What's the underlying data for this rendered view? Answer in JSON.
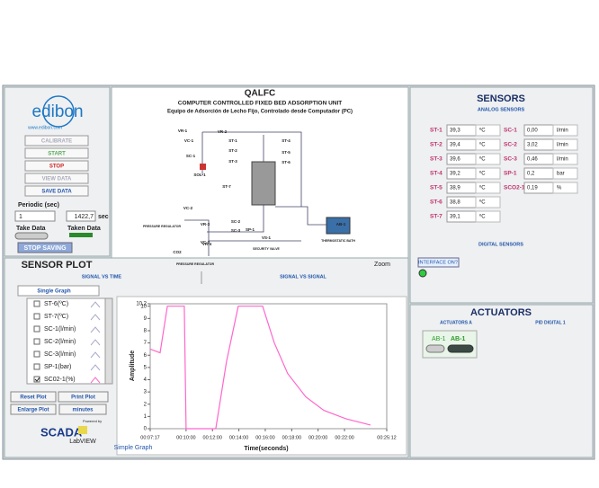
{
  "left_panel": {
    "logo": "edibon",
    "website": "www.edibon.com",
    "buttons": [
      "CALIBRATE",
      "START",
      "STOP",
      "VIEW DATA",
      "SAVE DATA"
    ],
    "periodic_label": "Periodic (sec)",
    "periodic_value": "1",
    "elapsed": "1422,7",
    "elapsed_unit": "sec",
    "take_data": "Take Data",
    "taken_data": "Taken Data",
    "stop_saving": "STOP SAVING"
  },
  "sensor_plot": {
    "title": "SENSOR PLOT",
    "tabs": [
      "SIGNAL VS TIME",
      "SIGNAL VS SIGNAL"
    ],
    "mode": "Single Graph",
    "channels": [
      "ST-6(ºC)",
      "ST-7(ºC)",
      "SC-1(l/min)",
      "SC-2(l/min)",
      "SC-3(l/min)",
      "SP-1(bar)"
    ],
    "buttons": [
      "Reset Plot",
      "Print Plot",
      "Enlarge Plot"
    ],
    "time_unit": "minutes",
    "footer": "Simple Graph",
    "scada_logo": "SCADA",
    "powered_by": "Powered by",
    "labview": "LabVIEW"
  },
  "chart_data": {
    "type": "line",
    "xlabel": "Time(seconds)",
    "ylabel": "Amplitude",
    "x": [
      437,
      482,
      515,
      572,
      592,
      600,
      735,
      784,
      837,
      948,
      1001,
      1062,
      1144,
      1226,
      1328,
      1438
    ],
    "series": [
      {
        "name": "SC02-1(%)",
        "color": "#ff66cc",
        "values": [
          6.5,
          6.2,
          10,
          10,
          10,
          0,
          0,
          5.5,
          10,
          10,
          7,
          4.5,
          2.6,
          1.5,
          0.8,
          0.3
        ]
      }
    ],
    "xlim": [
      437,
      1512
    ],
    "xticks": [
      {
        "value": 437,
        "label": "00:07:17"
      },
      {
        "value": 600,
        "label": "00:10:00"
      },
      {
        "value": 720,
        "label": "00:12:00"
      },
      {
        "value": 840,
        "label": "00:14:00"
      },
      {
        "value": 960,
        "label": "00:16:00"
      },
      {
        "value": 1080,
        "label": "00:18:00"
      },
      {
        "value": 1200,
        "label": "00:20:00"
      },
      {
        "value": 1320,
        "label": "00:22:00"
      },
      {
        "value": 1512,
        "label": "00:25:12"
      }
    ],
    "ylim": [
      0,
      10.2
    ],
    "yticks": [
      0,
      1,
      2,
      3,
      4,
      5,
      6,
      7,
      8,
      9,
      10,
      {
        "value": 10.2,
        "label": "10,2"
      }
    ]
  },
  "diagram": {
    "code": "QALFC",
    "title": "COMPUTER CONTROLLED FIXED BED ADSORPTION UNIT",
    "subtitle": "Equipo de Adsorción de Lecho Fijo, Controlado desde Computador (PC)",
    "labels": [
      "VR-1",
      "VR-2",
      "VC-1",
      "SC-1",
      "SOL-1",
      "ST-1",
      "ST-2",
      "ST-3",
      "ST-4",
      "ST-5",
      "ST-6",
      "ST-7",
      "VS-1",
      "VC-2",
      "VR-3",
      "VR-4",
      "VC-3",
      "SC-2",
      "SC-3",
      "SP-1",
      "CO2",
      "AB-1",
      "PRESSURE REGULATOR",
      "SECURITY VALVE",
      "THERMOSTATIC BATH",
      "PRESSURE REGULATOR"
    ],
    "zoom": "Zoom"
  },
  "sensors": {
    "title": "SENSORS",
    "analog_title": "ANALOG SENSORS",
    "left": [
      {
        "name": "ST-1",
        "value": "39,3",
        "unit": "ºC"
      },
      {
        "name": "ST-2",
        "value": "39,4",
        "unit": "ºC"
      },
      {
        "name": "ST-3",
        "value": "39,6",
        "unit": "ºC"
      },
      {
        "name": "ST-4",
        "value": "39,2",
        "unit": "ºC"
      },
      {
        "name": "ST-5",
        "value": "38,9",
        "unit": "ºC"
      },
      {
        "name": "ST-6",
        "value": "38,8",
        "unit": "ºC"
      },
      {
        "name": "ST-7",
        "value": "39,1",
        "unit": "ºC"
      }
    ],
    "right": [
      {
        "name": "SC-1",
        "value": "0,00",
        "unit": "l/min"
      },
      {
        "name": "SC-2",
        "value": "3,02",
        "unit": "l/min"
      },
      {
        "name": "SC-3",
        "value": "0,46",
        "unit": "l/min"
      },
      {
        "name": "SP-1",
        "value": "0,2",
        "unit": "bar"
      },
      {
        "name": "SCO2-1",
        "value": "0,19",
        "unit": "%"
      }
    ],
    "digital_title": "DIGITAL SENSORS",
    "interface": "INTERFACE ON?"
  },
  "actuators": {
    "title": "ACTUATORS",
    "tabs": [
      "ACTUATORS A",
      "PID DIGITAL 1"
    ],
    "switches": [
      "AB-1",
      "AB-1"
    ]
  }
}
